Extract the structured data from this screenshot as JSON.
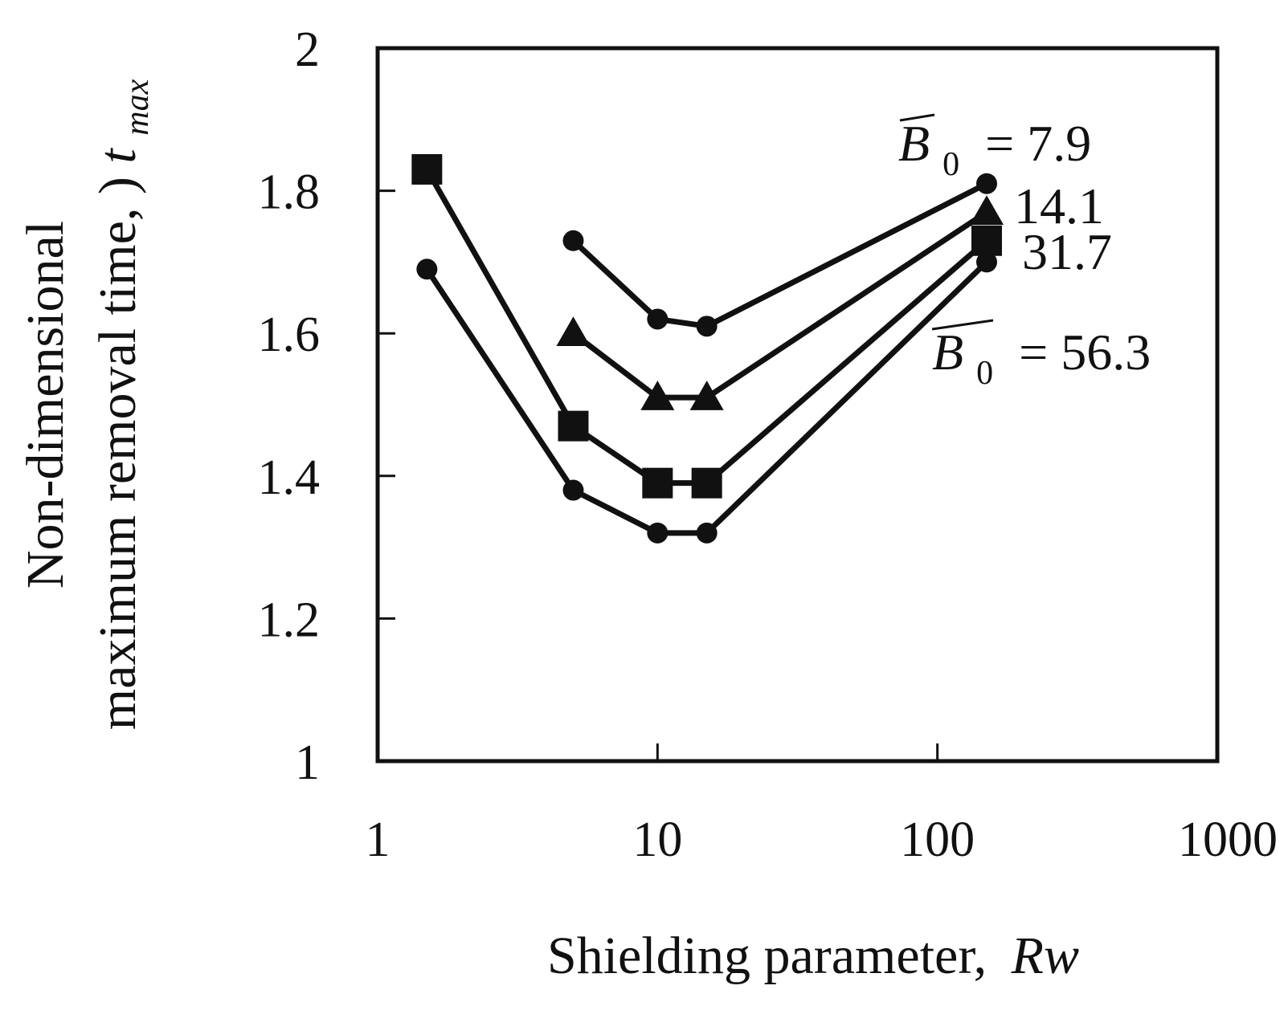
{
  "chart_data": {
    "type": "line",
    "xscale": "log",
    "xlabel": "Shielding parameter,",
    "xlabel_var": "Rw",
    "ylabel_line1": "Non-dimensional",
    "ylabel_line2": "maximum removal time,",
    "ylabel_var": "t",
    "ylabel_sub": "max",
    "xlim": [
      1,
      1000
    ],
    "ylim": [
      1,
      2
    ],
    "xticks": [
      1,
      10,
      100,
      1000
    ],
    "xtick_labels": [
      "1",
      "10",
      "100",
      "1000"
    ],
    "yticks": [
      1,
      1.2,
      1.4,
      1.6,
      1.8,
      2
    ],
    "ytick_labels": [
      "1",
      "1.2",
      "1.4",
      "1.6",
      "1.8",
      "2"
    ],
    "grid": false,
    "series": [
      {
        "name": "7.9",
        "marker": "circle",
        "points": [
          [
            5,
            1.73
          ],
          [
            10,
            1.62
          ],
          [
            15,
            1.61
          ],
          [
            150,
            1.81
          ]
        ]
      },
      {
        "name": "14.1",
        "marker": "triangle",
        "points": [
          [
            5,
            1.6
          ],
          [
            10,
            1.51
          ],
          [
            15,
            1.51
          ],
          [
            150,
            1.77
          ]
        ]
      },
      {
        "name": "31.7",
        "marker": "square",
        "points": [
          [
            1.5,
            1.83
          ],
          [
            5,
            1.47
          ],
          [
            10,
            1.39
          ],
          [
            15,
            1.39
          ],
          [
            150,
            1.73
          ]
        ]
      },
      {
        "name": "56.3",
        "marker": "circle",
        "points": [
          [
            1.5,
            1.69
          ],
          [
            5,
            1.38
          ],
          [
            10,
            1.32
          ],
          [
            15,
            1.32
          ],
          [
            150,
            1.7
          ]
        ]
      }
    ],
    "annotations": {
      "b0_symbol": "B",
      "b0_sub": "0",
      "top_label": "= 7.9",
      "label_14": "14.1",
      "label_31": "31.7",
      "bottom_label": "= 56.3"
    }
  }
}
